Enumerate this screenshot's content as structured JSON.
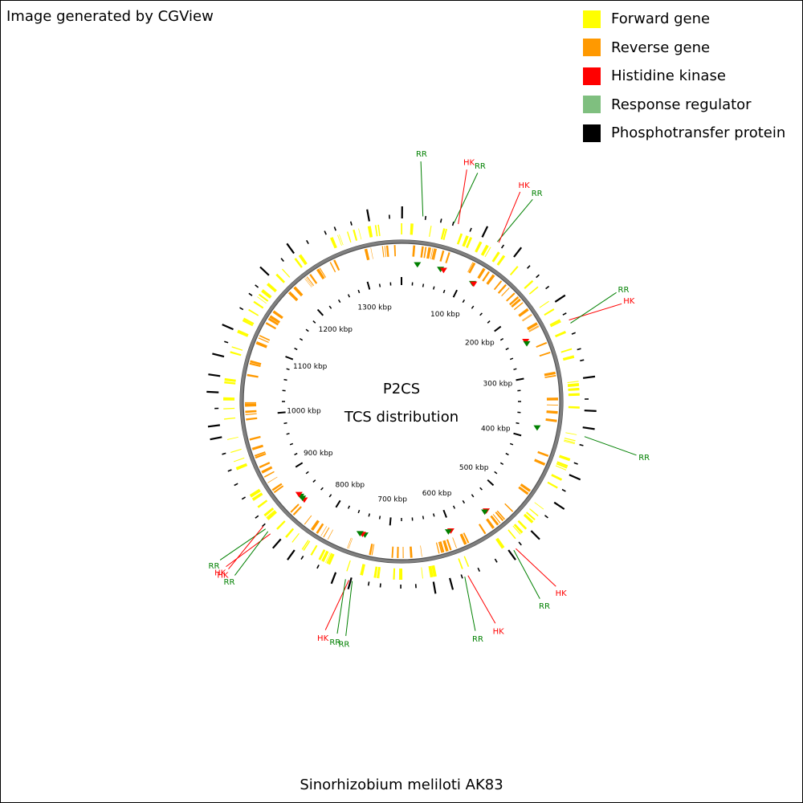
{
  "credit": "Image generated by CGView",
  "organism": "Sinorhizobium meliloti AK83",
  "center_title": "P2CS",
  "center_subtitle": "TCS distribution",
  "colors": {
    "forward": "#ffff00",
    "reverse": "#ff9900",
    "hk": "#ff0000",
    "rr": "#7fbf7f",
    "rr_marker": "#008000",
    "pt": "#000000",
    "backbone": "#808080"
  },
  "legend": [
    {
      "label": "Forward gene",
      "color": "#ffff00"
    },
    {
      "label": "Reverse gene",
      "color": "#ff9900"
    },
    {
      "label": "Histidine kinase",
      "color": "#ff0000"
    },
    {
      "label": "Response regulator",
      "color": "#7fbf7f"
    },
    {
      "label": "Phosphotransfer protein",
      "color": "#000000"
    }
  ],
  "sequence_length_kbp": 1360,
  "ruler_labels": [
    {
      "kbp": 100,
      "text": "100 kbp"
    },
    {
      "kbp": 200,
      "text": "200 kbp"
    },
    {
      "kbp": 300,
      "text": "300 kbp"
    },
    {
      "kbp": 400,
      "text": "400 kbp"
    },
    {
      "kbp": 500,
      "text": "500 kbp"
    },
    {
      "kbp": 600,
      "text": "600 kbp"
    },
    {
      "kbp": 700,
      "text": "700 kbp"
    },
    {
      "kbp": 800,
      "text": "800 kbp"
    },
    {
      "kbp": 900,
      "text": "900 kbp"
    },
    {
      "kbp": 1000,
      "text": "1000 kbp"
    },
    {
      "kbp": 1100,
      "text": "1100 kbp"
    },
    {
      "kbp": 1200,
      "text": "1200 kbp"
    },
    {
      "kbp": 1300,
      "text": "1300 kbp"
    }
  ],
  "tcs_features": [
    {
      "type": "RR",
      "kbp": 25,
      "strand": "forward"
    },
    {
      "type": "RR",
      "kbp": 62,
      "strand": "forward"
    },
    {
      "type": "HK",
      "kbp": 67,
      "strand": "forward"
    },
    {
      "type": "RR",
      "kbp": 117,
      "strand": "forward"
    },
    {
      "type": "HK",
      "kbp": 119,
      "strand": "forward"
    },
    {
      "type": "HK",
      "kbp": 242,
      "strand": "forward"
    },
    {
      "type": "RR",
      "kbp": 246,
      "strand": "forward"
    },
    {
      "type": "RR",
      "kbp": 381,
      "strand": "forward"
    },
    {
      "type": "HK",
      "kbp": 537,
      "strand": "forward"
    },
    {
      "type": "RR",
      "kbp": 540,
      "strand": "forward"
    },
    {
      "type": "HK",
      "kbp": 601,
      "strand": "forward"
    },
    {
      "type": "RR",
      "kbp": 605,
      "strand": "forward"
    },
    {
      "type": "RR",
      "kbp": 738,
      "strand": "forward"
    },
    {
      "type": "HK",
      "kbp": 742,
      "strand": "forward"
    },
    {
      "type": "RR",
      "kbp": 746,
      "strand": "forward"
    },
    {
      "type": "HK",
      "kbp": 849,
      "strand": "forward"
    },
    {
      "type": "RR",
      "kbp": 853,
      "strand": "forward"
    },
    {
      "type": "RR",
      "kbp": 857,
      "strand": "forward"
    },
    {
      "type": "HK",
      "kbp": 861,
      "strand": "forward"
    }
  ]
}
